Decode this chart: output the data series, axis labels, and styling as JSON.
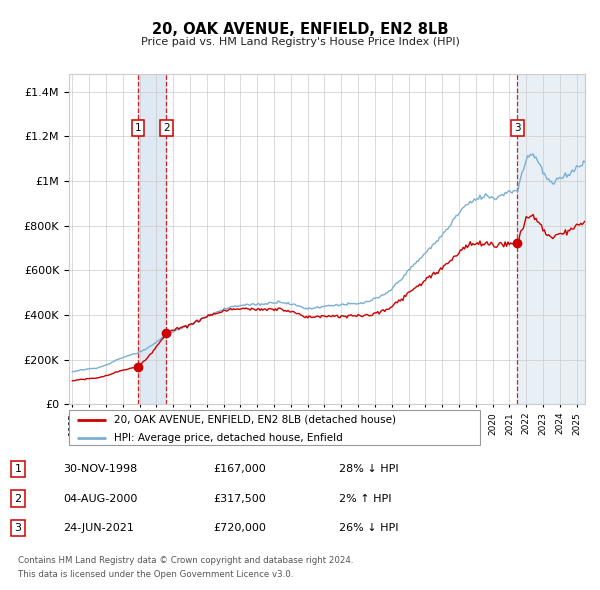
{
  "title": "20, OAK AVENUE, ENFIELD, EN2 8LB",
  "subtitle": "Price paid vs. HM Land Registry's House Price Index (HPI)",
  "legend_line1": "20, OAK AVENUE, ENFIELD, EN2 8LB (detached house)",
  "legend_line2": "HPI: Average price, detached house, Enfield",
  "footer1": "Contains HM Land Registry data © Crown copyright and database right 2024.",
  "footer2": "This data is licensed under the Open Government Licence v3.0.",
  "sale_points": [
    {
      "num": 1,
      "date": "30-NOV-1998",
      "price": 167000,
      "pct": "28%",
      "dir": "↓",
      "x_year": 1998.92
    },
    {
      "num": 2,
      "date": "04-AUG-2000",
      "price": 317500,
      "pct": "2%",
      "dir": "↑",
      "x_year": 2000.59
    },
    {
      "num": 3,
      "date": "24-JUN-2021",
      "price": 720000,
      "pct": "26%",
      "dir": "↓",
      "x_year": 2021.48
    }
  ],
  "table_rows": [
    {
      "num": 1,
      "date": "30-NOV-1998",
      "price": "£167,000",
      "pct": "28% ↓ HPI"
    },
    {
      "num": 2,
      "date": "04-AUG-2000",
      "price": "£317,500",
      "pct": "2% ↑ HPI"
    },
    {
      "num": 3,
      "date": "24-JUN-2021",
      "price": "£720,000",
      "pct": "26% ↓ HPI"
    }
  ],
  "ylim": [
    0,
    1480000
  ],
  "xlim_start": 1994.8,
  "xlim_end": 2025.5,
  "hpi_color": "#7bafd4",
  "price_color": "#cc0000",
  "dot_color": "#cc0000",
  "shade_color": "#d6e4f0",
  "grid_color": "#cccccc",
  "background_color": "#ffffff",
  "shade_x0": 1998.92,
  "shade_x1": 2000.59,
  "shade_x2": 2021.48,
  "shade_x3": 2025.5
}
